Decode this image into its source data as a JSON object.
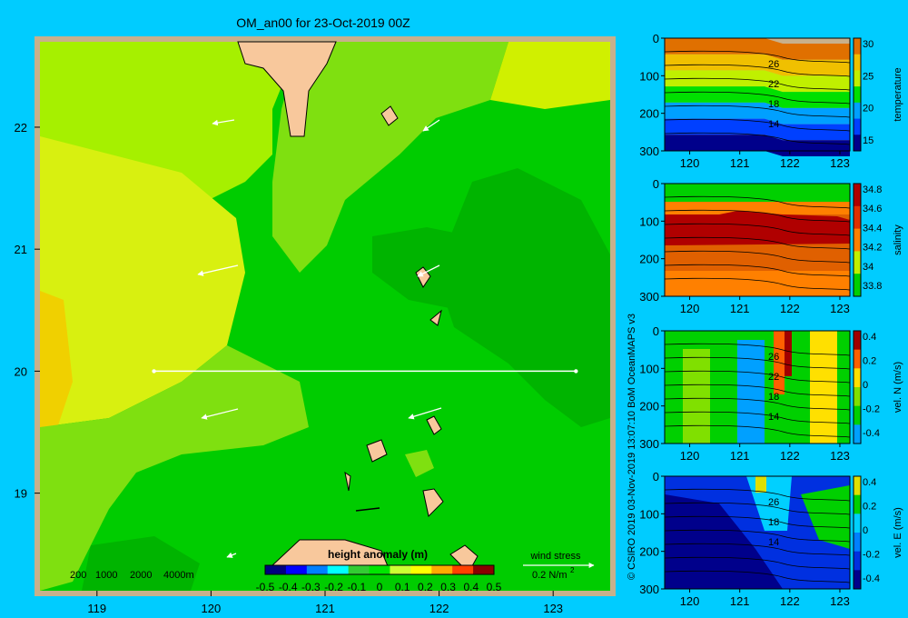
{
  "map": {
    "title": "OM_an00 for 23-Oct-2019 00Z",
    "x_ticks": [
      "119",
      "120",
      "121",
      "122",
      "123"
    ],
    "y_ticks": [
      "22",
      "21",
      "20",
      "19"
    ],
    "xlim": [
      118.5,
      123.5
    ],
    "ylim": [
      18.2,
      22.7
    ],
    "depth_legend": [
      "200",
      "1000",
      "2000",
      "4000m"
    ],
    "colorbar": {
      "label": "height anomaly  (m)",
      "ticks": [
        "-0.5",
        "-0.4",
        "-0.3",
        "-0.2",
        "-0.1",
        "0",
        "0.1",
        "0.2",
        "0.3",
        "0.4",
        "0.5"
      ],
      "colors": [
        "#00007f",
        "#0000ff",
        "#0080ff",
        "#00ffff",
        "#33cc33",
        "#00e600",
        "#ccff33",
        "#ffff00",
        "#ffaa00",
        "#ff4000",
        "#8b0000"
      ]
    },
    "wind_stress_label": "wind stress",
    "wind_stress_scale": "0.2 N/m",
    "wind_stress_exp": "2",
    "section": {
      "lat": 20.0,
      "lon_start": 119.5,
      "lon_end": 123.2
    }
  },
  "credit": "© CSIRO 2019    03-Nov-2019 13:07:10 BoM OceanMAPS v3",
  "panels": [
    {
      "id": "temperature",
      "label": "temperature",
      "y_ticks": [
        "0",
        "100",
        "200",
        "300"
      ],
      "x_ticks": [
        "120",
        "121",
        "122",
        "123"
      ],
      "cbar_ticks": [
        "30",
        "25",
        "20",
        "15"
      ],
      "contour_labels": [
        "26",
        "22",
        "18",
        "14"
      ],
      "colors": [
        "#00008b",
        "#0040ff",
        "#00a0ff",
        "#00e000",
        "#c0f000",
        "#f0c000",
        "#e07000"
      ]
    },
    {
      "id": "salinity",
      "label": "salinity",
      "y_ticks": [
        "0",
        "100",
        "200",
        "300"
      ],
      "x_ticks": [
        "120",
        "121",
        "122",
        "123"
      ],
      "cbar_ticks": [
        "34.8",
        "34.6",
        "34.4",
        "34.2",
        "34",
        "33.8"
      ],
      "contour_labels": [],
      "colors": [
        "#00d000",
        "#c0f000",
        "#ff8000",
        "#e03000",
        "#b00000"
      ]
    },
    {
      "id": "vel-n",
      "label": "vel. N  (m/s)",
      "y_ticks": [
        "0",
        "100",
        "200",
        "300"
      ],
      "x_ticks": [
        "120",
        "121",
        "122",
        "123"
      ],
      "cbar_ticks": [
        "0.4",
        "0.2",
        "0",
        "-0.2",
        "-0.4"
      ],
      "contour_labels": [
        "26",
        "22",
        "18",
        "14"
      ],
      "colors": [
        "#00a0ff",
        "#00d000",
        "#80e000",
        "#ffe000",
        "#ff6000",
        "#a00000"
      ]
    },
    {
      "id": "vel-e",
      "label": "vel. E  (m/s)",
      "y_ticks": [
        "0",
        "100",
        "200",
        "300"
      ],
      "x_ticks": [
        "120",
        "121",
        "122",
        "123"
      ],
      "cbar_ticks": [
        "0.4",
        "0.2",
        "0",
        "-0.2",
        "-0.4"
      ],
      "contour_labels": [
        "26",
        "18",
        "14"
      ],
      "colors": [
        "#00008b",
        "#0030e0",
        "#0080ff",
        "#00d0ff",
        "#00d000",
        "#e0e000"
      ]
    }
  ]
}
